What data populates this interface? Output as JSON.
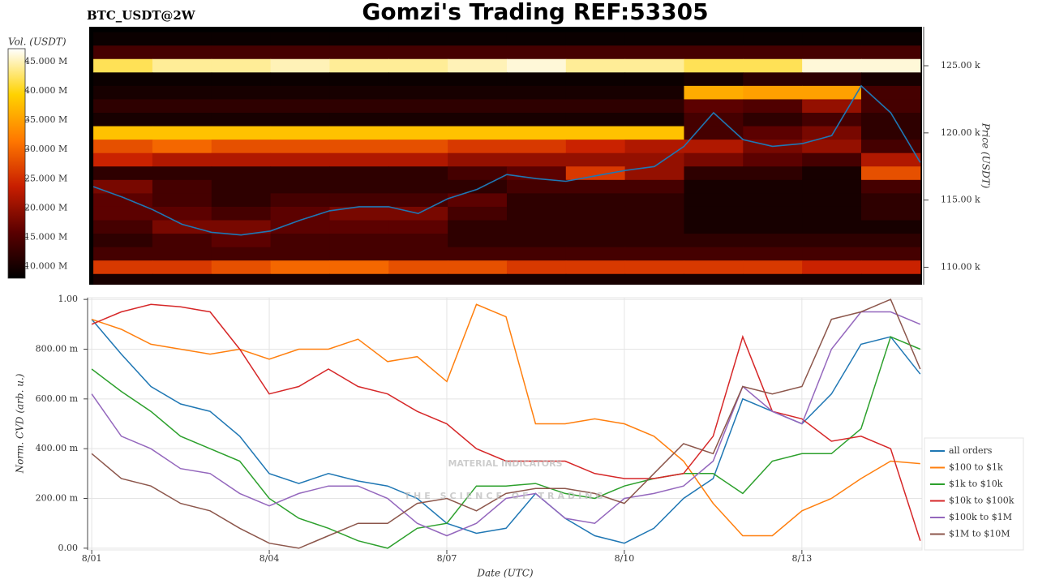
{
  "header": {
    "title": "Gomzi's Trading REF:53305"
  },
  "watermark": {
    "text": "MATERIAL INDICATORS",
    "tagline": "THE SCIENCE OF TRADING"
  },
  "chart_data": [
    {
      "type": "heatmap",
      "title": "BTC_USDT@2W",
      "ylabel": "Price (USDT)",
      "xlim": [
        -0.07,
        14.03
      ],
      "ylim": [
        108.7,
        127.9
      ],
      "yticks": [
        {
          "value": 110,
          "label": "110.00 k"
        },
        {
          "value": 115,
          "label": "115.00 k"
        },
        {
          "value": 120,
          "label": "120.00 k"
        },
        {
          "value": 125,
          "label": "125.00 k"
        }
      ],
      "colorscale": [
        "#000000",
        "#5a0000",
        "#c81e00",
        "#ff7800",
        "#ffd200",
        "#ffffff"
      ],
      "colorbar": {
        "label": "Vol. (USDT)",
        "lim": [
          8,
          47.2
        ],
        "ticks": [
          {
            "value": 10,
            "label": "10.000 M"
          },
          {
            "value": 15,
            "label": "15.000 M"
          },
          {
            "value": 20,
            "label": "20.000 M"
          },
          {
            "value": 25,
            "label": "25.000 M"
          },
          {
            "value": 30,
            "label": "30.000 M"
          },
          {
            "value": 35,
            "label": "35.000 M"
          },
          {
            "value": 40,
            "label": "40.000 M"
          },
          {
            "value": 45,
            "label": "45.000 M"
          }
        ]
      },
      "heatmap": {
        "x_edges": [
          0,
          1,
          2,
          3,
          4,
          5,
          6,
          7,
          8,
          9,
          10,
          11,
          12,
          13,
          14
        ],
        "levels": [
          127,
          126,
          125,
          124,
          123,
          122,
          121,
          120,
          119,
          118,
          117,
          116,
          115,
          114,
          113,
          112,
          111,
          110,
          109
        ],
        "z": [
          [
            9,
            9,
            9,
            9,
            9,
            9,
            9,
            9,
            9,
            9,
            9,
            9,
            9,
            9
          ],
          [
            14,
            14,
            14,
            14,
            14,
            14,
            14,
            14,
            14,
            14,
            14,
            14,
            14,
            14
          ],
          [
            42,
            44,
            44,
            45,
            44,
            44,
            45,
            46,
            44,
            44,
            42,
            42,
            46,
            46
          ],
          [
            9,
            9,
            9,
            9,
            9,
            9,
            9,
            9,
            9,
            9,
            10,
            12,
            12,
            10
          ],
          [
            10,
            10,
            10,
            10,
            10,
            10,
            10,
            10,
            10,
            10,
            36,
            35,
            35,
            14
          ],
          [
            12,
            12,
            12,
            12,
            12,
            12,
            12,
            12,
            12,
            12,
            16,
            15,
            20,
            14
          ],
          [
            10,
            10,
            10,
            10,
            10,
            10,
            10,
            10,
            10,
            10,
            14,
            12,
            14,
            12
          ],
          [
            38,
            38,
            38,
            38,
            38,
            38,
            38,
            38,
            38,
            38,
            14,
            16,
            18,
            12
          ],
          [
            28,
            30,
            28,
            28,
            28,
            28,
            26,
            26,
            24,
            22,
            22,
            18,
            20,
            14
          ],
          [
            24,
            22,
            22,
            22,
            22,
            22,
            20,
            20,
            20,
            20,
            18,
            16,
            14,
            22
          ],
          [
            12,
            12,
            12,
            12,
            12,
            12,
            14,
            16,
            26,
            20,
            12,
            12,
            10,
            28
          ],
          [
            18,
            14,
            12,
            12,
            12,
            12,
            12,
            14,
            14,
            14,
            10,
            10,
            10,
            14
          ],
          [
            16,
            14,
            12,
            14,
            14,
            14,
            16,
            12,
            12,
            12,
            10,
            10,
            10,
            12
          ],
          [
            16,
            16,
            14,
            16,
            18,
            18,
            14,
            12,
            12,
            12,
            10,
            10,
            10,
            12
          ],
          [
            14,
            18,
            18,
            16,
            16,
            16,
            12,
            12,
            12,
            12,
            10,
            10,
            10,
            10
          ],
          [
            12,
            14,
            16,
            14,
            14,
            14,
            12,
            12,
            12,
            12,
            12,
            12,
            12,
            12
          ],
          [
            14,
            14,
            14,
            14,
            14,
            14,
            14,
            14,
            14,
            14,
            14,
            14,
            14,
            14
          ],
          [
            26,
            26,
            28,
            30,
            30,
            28,
            28,
            26,
            26,
            26,
            26,
            26,
            24,
            24
          ],
          [
            10,
            10,
            10,
            10,
            10,
            10,
            10,
            10,
            10,
            10,
            10,
            10,
            10,
            10
          ]
        ]
      },
      "x": [
        0,
        0.5,
        1,
        1.5,
        2,
        2.5,
        3,
        3.5,
        4,
        4.5,
        5,
        5.5,
        6,
        6.5,
        7,
        7.5,
        8,
        8.5,
        9,
        9.5,
        10,
        10.5,
        11,
        11.5,
        12,
        12.5,
        13,
        13.5,
        14
      ],
      "price": {
        "color": "#1f77b4",
        "values": [
          116.0,
          115.2,
          114.3,
          113.2,
          112.6,
          112.4,
          112.7,
          113.5,
          114.2,
          114.5,
          114.5,
          114.0,
          115.1,
          115.8,
          116.9,
          116.6,
          116.4,
          116.8,
          117.2,
          117.5,
          119.0,
          121.5,
          119.5,
          119.0,
          119.2,
          119.8,
          123.5,
          121.5,
          117.8
        ]
      }
    },
    {
      "type": "line",
      "xlabel": "Date (UTC)",
      "ylabel": "Norm. CVD (arb. u.)",
      "xlim": [
        -0.07,
        14.03
      ],
      "ylim": [
        -0.007,
        1.007
      ],
      "grid": true,
      "legend": "right",
      "xticks": [
        {
          "value": 0,
          "label": "8/01"
        },
        {
          "value": 3,
          "label": "8/04"
        },
        {
          "value": 6,
          "label": "8/07"
        },
        {
          "value": 9,
          "label": "8/10"
        },
        {
          "value": 12,
          "label": "8/13"
        }
      ],
      "yticks": [
        {
          "value": 0,
          "label": "0.00"
        },
        {
          "value": 0.2,
          "label": "200.00 m"
        },
        {
          "value": 0.4,
          "label": "400.00 m"
        },
        {
          "value": 0.6,
          "label": "600.00 m"
        },
        {
          "value": 0.8,
          "label": "800.00 m"
        },
        {
          "value": 1,
          "label": "1.00"
        }
      ],
      "x": [
        0,
        0.5,
        1,
        1.5,
        2,
        2.5,
        3,
        3.5,
        4,
        4.5,
        5,
        5.5,
        6,
        6.5,
        7,
        7.5,
        8,
        8.5,
        9,
        9.5,
        10,
        10.5,
        11,
        11.5,
        12,
        12.5,
        13,
        13.5,
        14
      ],
      "series": [
        {
          "name": "all orders",
          "color": "#1f77b4",
          "values": [
            0.92,
            0.78,
            0.65,
            0.58,
            0.55,
            0.45,
            0.3,
            0.26,
            0.3,
            0.27,
            0.25,
            0.2,
            0.1,
            0.06,
            0.08,
            0.22,
            0.12,
            0.05,
            0.02,
            0.08,
            0.2,
            0.28,
            0.6,
            0.55,
            0.5,
            0.62,
            0.82,
            0.85,
            0.7
          ]
        },
        {
          "name": "$100 to $1k",
          "color": "#ff7f0e",
          "values": [
            0.92,
            0.88,
            0.82,
            0.8,
            0.78,
            0.8,
            0.76,
            0.8,
            0.8,
            0.84,
            0.75,
            0.77,
            0.67,
            0.98,
            0.93,
            0.5,
            0.5,
            0.52,
            0.5,
            0.45,
            0.35,
            0.18,
            0.05,
            0.05,
            0.15,
            0.2,
            0.28,
            0.35,
            0.34
          ]
        },
        {
          "name": "$1k to $10k",
          "color": "#2ca02c",
          "values": [
            0.72,
            0.63,
            0.55,
            0.45,
            0.4,
            0.35,
            0.2,
            0.12,
            0.08,
            0.03,
            0.0,
            0.08,
            0.1,
            0.25,
            0.25,
            0.26,
            0.22,
            0.2,
            0.25,
            0.28,
            0.3,
            0.3,
            0.22,
            0.35,
            0.38,
            0.38,
            0.48,
            0.85,
            0.8
          ]
        },
        {
          "name": "$10k to $100k",
          "color": "#d62728",
          "values": [
            0.9,
            0.95,
            0.98,
            0.97,
            0.95,
            0.8,
            0.62,
            0.65,
            0.72,
            0.65,
            0.62,
            0.55,
            0.5,
            0.4,
            0.35,
            0.35,
            0.35,
            0.3,
            0.28,
            0.28,
            0.3,
            0.45,
            0.85,
            0.55,
            0.52,
            0.43,
            0.45,
            0.4,
            0.03
          ]
        },
        {
          "name": "$100k to $1M",
          "color": "#9467bd",
          "values": [
            0.62,
            0.45,
            0.4,
            0.32,
            0.3,
            0.22,
            0.17,
            0.22,
            0.25,
            0.25,
            0.2,
            0.1,
            0.05,
            0.1,
            0.2,
            0.22,
            0.12,
            0.1,
            0.2,
            0.22,
            0.25,
            0.35,
            0.65,
            0.55,
            0.5,
            0.8,
            0.95,
            0.95,
            0.9
          ]
        },
        {
          "name": "$1M to $10M",
          "color": "#8c564b",
          "values": [
            0.38,
            0.28,
            0.25,
            0.18,
            0.15,
            0.08,
            0.02,
            0.0,
            0.05,
            0.1,
            0.1,
            0.18,
            0.2,
            0.15,
            0.22,
            0.24,
            0.24,
            0.22,
            0.18,
            0.3,
            0.42,
            0.38,
            0.65,
            0.62,
            0.65,
            0.92,
            0.95,
            1.0,
            0.72
          ]
        }
      ]
    }
  ]
}
